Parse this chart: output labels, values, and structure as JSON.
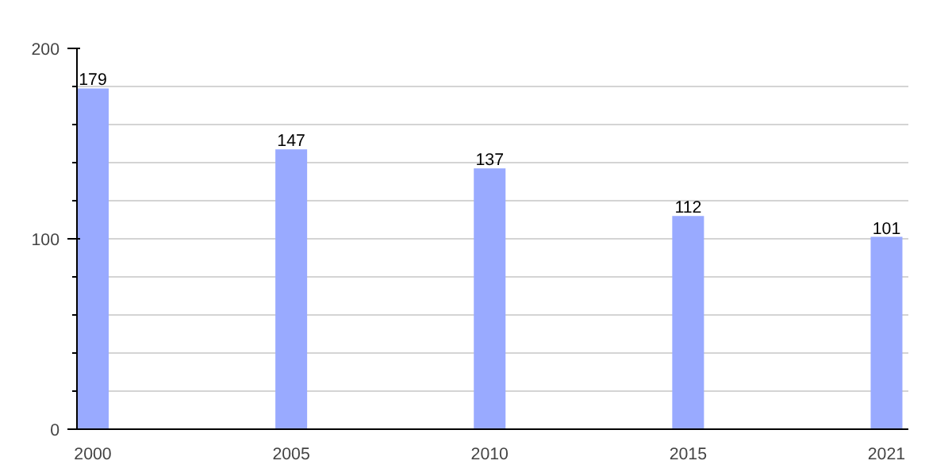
{
  "chart_data": {
    "type": "bar",
    "categories": [
      "2000",
      "2005",
      "2010",
      "2015",
      "2021"
    ],
    "values": [
      179,
      147,
      137,
      112,
      101
    ],
    "color": "#99aaff",
    "ylim": [
      0,
      200
    ],
    "yticks": [
      0,
      {
        "value": 20,
        "label": null
      },
      {
        "value": 40,
        "label": null
      },
      {
        "value": 60,
        "label": null
      },
      {
        "value": 80,
        "label": null
      },
      100,
      {
        "value": 120,
        "label": null
      },
      {
        "value": 140,
        "label": null
      },
      {
        "value": 160,
        "label": null
      },
      {
        "value": 180,
        "label": null
      },
      200
    ],
    "grid": "y",
    "data_labels": true
  }
}
